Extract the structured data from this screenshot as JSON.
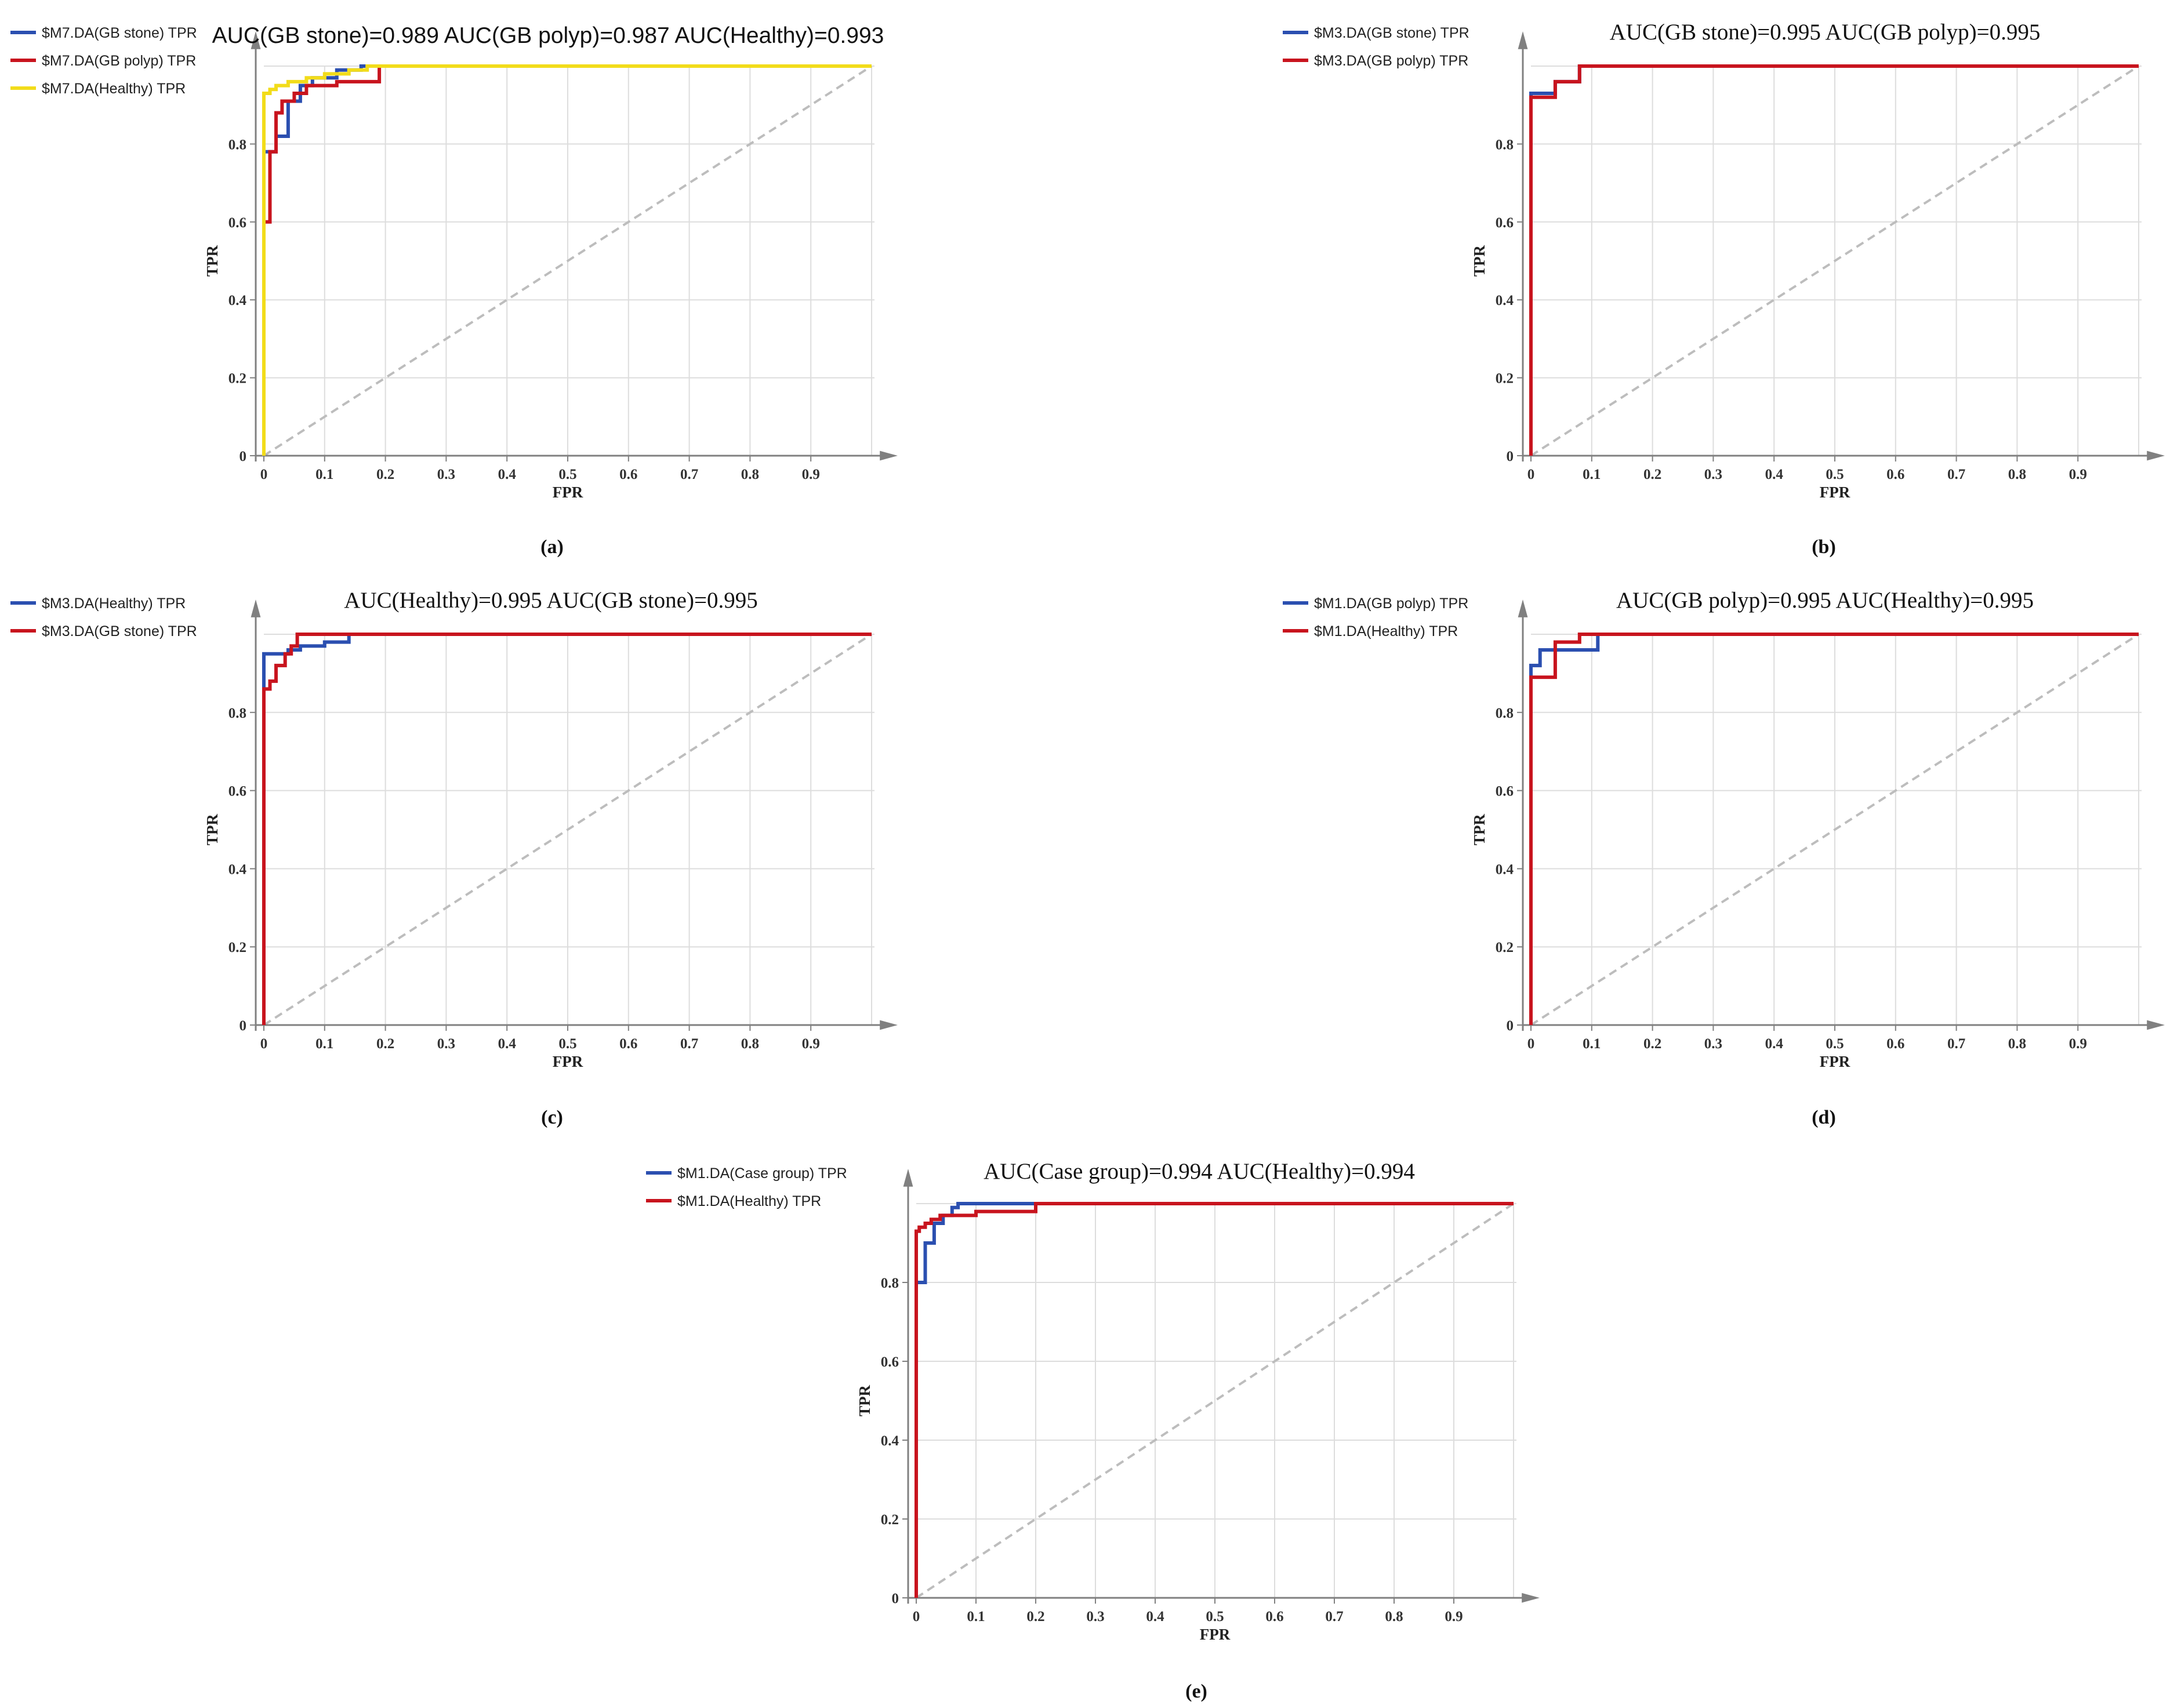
{
  "figure": {
    "background": "#ffffff"
  },
  "colors": {
    "blue": "#2b4fb0",
    "red": "#c8141e",
    "yellow": "#f2dc1a",
    "diagonal": "#bdbdbd",
    "grid": "#dddddd",
    "axis": "#808080"
  },
  "chart_data": [
    {
      "id": "a",
      "type": "line",
      "caption": "(a)",
      "title": "AUC(GB stone)=0.989  AUC(GB polyp)=0.987  AUC(Healthy)=0.993",
      "title_font": "sans",
      "xlabel": "FPR",
      "ylabel": "TPR",
      "xlim": [
        0,
        1
      ],
      "ylim": [
        0,
        1
      ],
      "xticks": [
        "0",
        "0.1",
        "0.2",
        "0.3",
        "0.4",
        "0.5",
        "0.6",
        "0.7",
        "0.8",
        "0.9"
      ],
      "yticks": [
        "0",
        "0.2",
        "0.4",
        "0.6",
        "0.8"
      ],
      "grid": true,
      "diagonal": true,
      "series": [
        {
          "name": "$M7.DA(GB stone) TPR",
          "color": "#2b4fb0",
          "x": [
            0,
            0,
            0.02,
            0.02,
            0.04,
            0.04,
            0.06,
            0.06,
            0.08,
            0.08,
            0.12,
            0.12,
            0.16,
            0.16,
            1
          ],
          "y": [
            0,
            0.78,
            0.78,
            0.82,
            0.82,
            0.91,
            0.91,
            0.95,
            0.95,
            0.97,
            0.97,
            0.99,
            0.99,
            1.0,
            1.0
          ]
        },
        {
          "name": "$M7.DA(GB polyp) TPR",
          "color": "#c8141e",
          "x": [
            0,
            0,
            0.01,
            0.01,
            0.02,
            0.02,
            0.03,
            0.03,
            0.05,
            0.05,
            0.07,
            0.07,
            0.12,
            0.12,
            0.19,
            0.19,
            1
          ],
          "y": [
            0,
            0.6,
            0.6,
            0.78,
            0.78,
            0.88,
            0.88,
            0.91,
            0.91,
            0.93,
            0.93,
            0.95,
            0.95,
            0.96,
            0.96,
            1.0,
            1.0
          ]
        },
        {
          "name": "$M7.DA(Healthy) TPR",
          "color": "#f2dc1a",
          "x": [
            0,
            0,
            0.01,
            0.01,
            0.02,
            0.02,
            0.04,
            0.04,
            0.07,
            0.07,
            0.1,
            0.1,
            0.14,
            0.14,
            0.17,
            0.17,
            1
          ],
          "y": [
            0,
            0.93,
            0.93,
            0.94,
            0.94,
            0.95,
            0.95,
            0.96,
            0.96,
            0.97,
            0.97,
            0.98,
            0.98,
            0.99,
            0.99,
            1.0,
            1.0
          ]
        }
      ]
    },
    {
      "id": "b",
      "type": "line",
      "caption": "(b)",
      "title": "AUC(GB stone)=0.995  AUC(GB polyp)=0.995",
      "title_font": "serif",
      "xlabel": "FPR",
      "ylabel": "TPR",
      "xlim": [
        0,
        1
      ],
      "ylim": [
        0,
        1
      ],
      "xticks": [
        "0",
        "0.1",
        "0.2",
        "0.3",
        "0.4",
        "0.5",
        "0.6",
        "0.7",
        "0.8",
        "0.9"
      ],
      "yticks": [
        "0",
        "0.2",
        "0.4",
        "0.6",
        "0.8"
      ],
      "grid": true,
      "diagonal": true,
      "series": [
        {
          "name": "$M3.DA(GB stone) TPR",
          "color": "#2b4fb0",
          "x": [
            0,
            0,
            0.04,
            0.04,
            0.08,
            0.08,
            1
          ],
          "y": [
            0,
            0.93,
            0.93,
            0.96,
            0.96,
            1.0,
            1.0
          ]
        },
        {
          "name": "$M3.DA(GB polyp) TPR",
          "color": "#c8141e",
          "x": [
            0,
            0,
            0.04,
            0.04,
            0.08,
            0.08,
            1
          ],
          "y": [
            0,
            0.92,
            0.92,
            0.96,
            0.96,
            1.0,
            1.0
          ]
        }
      ]
    },
    {
      "id": "c",
      "type": "line",
      "caption": "(c)",
      "title": "AUC(Healthy)=0.995  AUC(GB stone)=0.995",
      "title_font": "serif",
      "xlabel": "FPR",
      "ylabel": "TPR",
      "xlim": [
        0,
        1
      ],
      "ylim": [
        0,
        1
      ],
      "xticks": [
        "0",
        "0.1",
        "0.2",
        "0.3",
        "0.4",
        "0.5",
        "0.6",
        "0.7",
        "0.8",
        "0.9"
      ],
      "yticks": [
        "0",
        "0.2",
        "0.4",
        "0.6",
        "0.8"
      ],
      "grid": true,
      "diagonal": true,
      "series": [
        {
          "name": "$M3.DA(Healthy) TPR",
          "color": "#2b4fb0",
          "x": [
            0,
            0,
            0.04,
            0.04,
            0.06,
            0.06,
            0.1,
            0.1,
            0.14,
            0.14,
            1
          ],
          "y": [
            0,
            0.95,
            0.95,
            0.96,
            0.96,
            0.97,
            0.97,
            0.98,
            0.98,
            1.0,
            1.0
          ]
        },
        {
          "name": "$M3.DA(GB stone) TPR",
          "color": "#c8141e",
          "x": [
            0,
            0,
            0.01,
            0.01,
            0.02,
            0.02,
            0.035,
            0.035,
            0.045,
            0.045,
            0.055,
            0.055,
            1
          ],
          "y": [
            0,
            0.86,
            0.86,
            0.88,
            0.88,
            0.92,
            0.92,
            0.95,
            0.95,
            0.97,
            0.97,
            1.0,
            1.0
          ]
        }
      ]
    },
    {
      "id": "d",
      "type": "line",
      "caption": "(d)",
      "title": "AUC(GB polyp)=0.995  AUC(Healthy)=0.995",
      "title_font": "serif",
      "xlabel": "FPR",
      "ylabel": "TPR",
      "xlim": [
        0,
        1
      ],
      "ylim": [
        0,
        1
      ],
      "xticks": [
        "0",
        "0.1",
        "0.2",
        "0.3",
        "0.4",
        "0.5",
        "0.6",
        "0.7",
        "0.8",
        "0.9"
      ],
      "yticks": [
        "0",
        "0.2",
        "0.4",
        "0.6",
        "0.8"
      ],
      "grid": true,
      "diagonal": true,
      "series": [
        {
          "name": "$M1.DA(GB polyp) TPR",
          "color": "#2b4fb0",
          "x": [
            0,
            0,
            0.015,
            0.015,
            0.11,
            0.11,
            1
          ],
          "y": [
            0,
            0.92,
            0.92,
            0.96,
            0.96,
            1.0,
            1.0
          ]
        },
        {
          "name": "$M1.DA(Healthy) TPR",
          "color": "#c8141e",
          "x": [
            0,
            0,
            0.04,
            0.04,
            0.08,
            0.08,
            1
          ],
          "y": [
            0,
            0.89,
            0.89,
            0.98,
            0.98,
            1.0,
            1.0
          ]
        }
      ]
    },
    {
      "id": "e",
      "type": "line",
      "caption": "(e)",
      "title": "AUC(Case group)=0.994  AUC(Healthy)=0.994",
      "title_font": "serif",
      "xlabel": "FPR",
      "ylabel": "TPR",
      "xlim": [
        0,
        1
      ],
      "ylim": [
        0,
        1
      ],
      "xticks": [
        "0",
        "0.1",
        "0.2",
        "0.3",
        "0.4",
        "0.5",
        "0.6",
        "0.7",
        "0.8",
        "0.9"
      ],
      "yticks": [
        "0",
        "0.2",
        "0.4",
        "0.6",
        "0.8"
      ],
      "grid": true,
      "diagonal": true,
      "series": [
        {
          "name": "$M1.DA(Case group) TPR",
          "color": "#2b4fb0",
          "x": [
            0,
            0,
            0.015,
            0.015,
            0.03,
            0.03,
            0.045,
            0.045,
            0.06,
            0.06,
            0.07,
            0.07,
            1
          ],
          "y": [
            0,
            0.8,
            0.8,
            0.9,
            0.9,
            0.95,
            0.95,
            0.97,
            0.97,
            0.99,
            0.99,
            1.0,
            1.0
          ]
        },
        {
          "name": "$M1.DA(Healthy) TPR",
          "color": "#c8141e",
          "x": [
            0,
            0,
            0.005,
            0.005,
            0.015,
            0.015,
            0.025,
            0.025,
            0.04,
            0.04,
            0.1,
            0.1,
            0.2,
            0.2,
            1
          ],
          "y": [
            0,
            0.93,
            0.93,
            0.94,
            0.94,
            0.95,
            0.95,
            0.96,
            0.96,
            0.97,
            0.97,
            0.98,
            0.98,
            1.0,
            1.0
          ]
        }
      ]
    }
  ]
}
